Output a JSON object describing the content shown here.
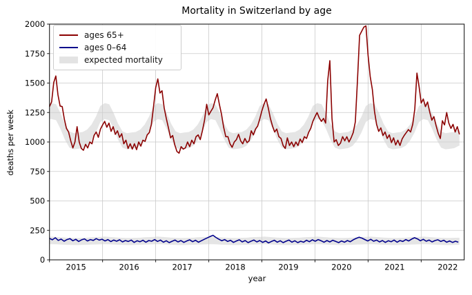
{
  "figure": {
    "title": "Mortality in Switzerland by age",
    "xlabel": "year",
    "ylabel": "deaths per week"
  },
  "legend": {
    "items": [
      {
        "label": "ages 65+",
        "type": "line",
        "color": "#8b0000"
      },
      {
        "label": "ages 0–64",
        "type": "line",
        "color": "#00008b"
      },
      {
        "label": "expected mortality",
        "type": "band",
        "color": "#e3e3e3"
      }
    ]
  },
  "chart_data": {
    "type": "line",
    "title": "Mortality in Switzerland by age",
    "xlabel": "year",
    "ylabel": "deaths per week",
    "xlim": [
      2015.0,
      2022.81
    ],
    "ylim": [
      0,
      2000
    ],
    "grid": true,
    "legend_position": "upper-left",
    "yticks": [
      0,
      250,
      500,
      750,
      1000,
      1250,
      1500,
      1750,
      2000
    ],
    "xtick_years": [
      2015,
      2016,
      2017,
      2018,
      2019,
      2020,
      2021,
      2022
    ],
    "series": [
      {
        "name": "ages 65+",
        "color": "#8b0000",
        "x0": 2015.0,
        "dx": 0.04,
        "values": [
          1300,
          1340,
          1505,
          1560,
          1400,
          1305,
          1300,
          1195,
          1115,
          1085,
          1010,
          950,
          1000,
          1130,
          1000,
          945,
          930,
          980,
          950,
          1000,
          985,
          1055,
          1085,
          1040,
          1110,
          1145,
          1175,
          1125,
          1160,
          1090,
          1130,
          1065,
          1095,
          1040,
          1070,
          985,
          1015,
          945,
          985,
          940,
          985,
          935,
          1000,
          965,
          1015,
          1005,
          1060,
          1080,
          1150,
          1300,
          1460,
          1535,
          1415,
          1435,
          1290,
          1200,
          1120,
          1035,
          1055,
          975,
          920,
          905,
          960,
          940,
          950,
          1000,
          960,
          1015,
          985,
          1045,
          1060,
          1020,
          1095,
          1185,
          1320,
          1230,
          1260,
          1290,
          1355,
          1410,
          1320,
          1235,
          1125,
          1045,
          1045,
          985,
          955,
          1000,
          1020,
          1065,
          1010,
          985,
          1030,
          995,
          1010,
          1095,
          1060,
          1110,
          1135,
          1195,
          1265,
          1320,
          1365,
          1290,
          1200,
          1135,
          1085,
          1110,
          1045,
          1030,
          970,
          945,
          1035,
          970,
          1000,
          960,
          1000,
          970,
          1025,
          995,
          1045,
          1030,
          1080,
          1115,
          1175,
          1215,
          1250,
          1205,
          1175,
          1200,
          1160,
          1520,
          1690,
          1200,
          1000,
          1020,
          970,
          990,
          1045,
          1010,
          1045,
          1000,
          1035,
          1080,
          1170,
          1520,
          1905,
          1940,
          1975,
          1985,
          1735,
          1555,
          1445,
          1260,
          1150,
          1090,
          1120,
          1055,
          1085,
          1030,
          1060,
          995,
          1035,
          975,
          1015,
          970,
          1025,
          1055,
          1080,
          1105,
          1085,
          1150,
          1280,
          1585,
          1470,
          1330,
          1365,
          1300,
          1340,
          1255,
          1185,
          1215,
          1140,
          1075,
          1030,
          1180,
          1145,
          1250,
          1160,
          1115,
          1150,
          1085,
          1130,
          1065
        ]
      },
      {
        "name": "ages 0–64",
        "color": "#00008b",
        "x0": 2015.0,
        "dx": 0.055,
        "values": [
          182,
          170,
          188,
          165,
          176,
          158,
          172,
          180,
          162,
          174,
          156,
          170,
          178,
          160,
          172,
          165,
          180,
          168,
          175,
          160,
          172,
          155,
          168,
          158,
          170,
          152,
          164,
          156,
          168,
          148,
          162,
          154,
          166,
          150,
          164,
          158,
          172,
          156,
          168,
          150,
          162,
          146,
          158,
          168,
          152,
          164,
          148,
          160,
          170,
          154,
          166,
          150,
          162,
          174,
          186,
          198,
          208,
          190,
          175,
          162,
          172,
          156,
          166,
          148,
          160,
          170,
          152,
          164,
          146,
          158,
          168,
          152,
          164,
          148,
          160,
          144,
          156,
          166,
          150,
          162,
          146,
          158,
          168,
          150,
          162,
          146,
          158,
          150,
          166,
          154,
          170,
          158,
          172,
          162,
          150,
          164,
          152,
          166,
          156,
          146,
          160,
          150,
          164,
          154,
          170,
          182,
          192,
          184,
          172,
          160,
          174,
          158,
          168,
          152,
          164,
          148,
          162,
          154,
          168,
          150,
          164,
          156,
          172,
          160,
          176,
          188,
          178,
          162,
          174,
          158,
          168,
          152,
          164,
          170,
          156,
          166,
          150,
          160,
          148,
          158,
          150
        ]
      }
    ],
    "expected_bands": [
      {
        "name": "expected mortality (ages 65+)",
        "color": "#cfcfcf",
        "opacity": 0.55,
        "x_start": 2015.0,
        "x_end": 2022.72,
        "seasonal_low": [
          1195,
          1185,
          1110,
          1020,
          952,
          938,
          942,
          948,
          968,
          1012,
          1080,
          1170
        ],
        "seasonal_high": [
          1330,
          1320,
          1245,
          1155,
          1090,
          1075,
          1080,
          1085,
          1105,
          1148,
          1215,
          1305
        ]
      },
      {
        "name": "expected mortality (ages 0-64)",
        "color": "#cfcfcf",
        "opacity": 0.55,
        "x_start": 2015.0,
        "x_end": 2022.72,
        "seasonal_low": [
          133,
          132,
          130,
          128,
          127,
          126,
          126,
          127,
          128,
          130,
          131,
          132
        ],
        "seasonal_high": [
          197,
          195,
          192,
          189,
          187,
          186,
          186,
          187,
          188,
          191,
          193,
          195
        ]
      }
    ]
  }
}
